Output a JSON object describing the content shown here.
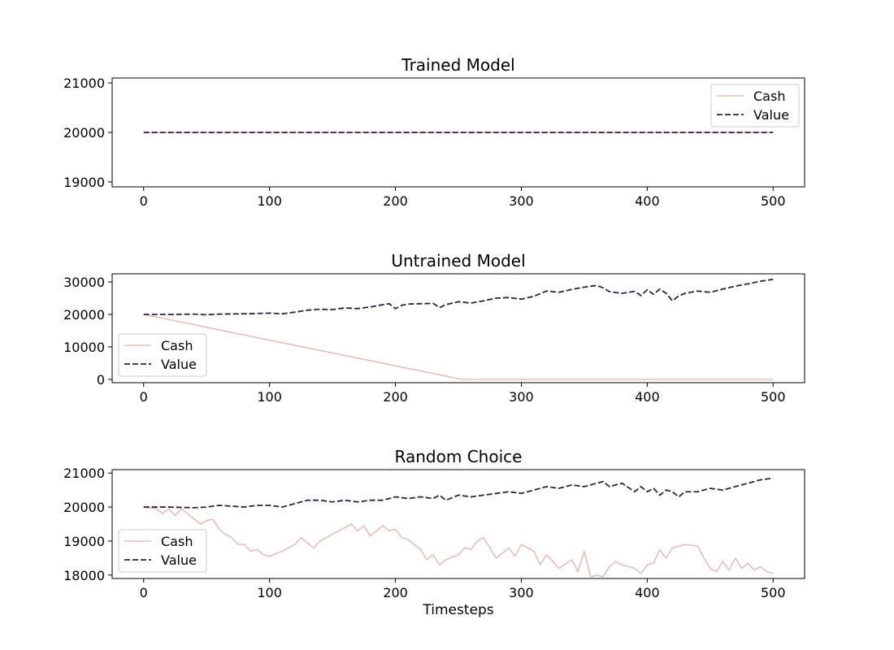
{
  "colors": {
    "cash": "#e5bfba",
    "value": "#2d2343",
    "axis": "#000000"
  },
  "chart_data": [
    {
      "type": "line",
      "title": "Trained Model",
      "xlabel": "",
      "ylabel": "",
      "xlim": [
        -25,
        525
      ],
      "ylim": [
        18900,
        21100
      ],
      "xticks": [
        0,
        100,
        200,
        300,
        400,
        500
      ],
      "yticks": [
        19000,
        20000,
        21000
      ],
      "legend": "top-right",
      "grid": false,
      "series": [
        {
          "name": "Cash",
          "style": "solid",
          "x": [
            0,
            500
          ],
          "y": [
            20000,
            20000
          ]
        },
        {
          "name": "Value",
          "style": "dashed",
          "x": [
            0,
            500
          ],
          "y": [
            20000,
            20000
          ]
        }
      ]
    },
    {
      "type": "line",
      "title": "Untrained Model",
      "xlabel": "",
      "ylabel": "",
      "xlim": [
        -25,
        525
      ],
      "ylim": [
        -1000,
        32500
      ],
      "xticks": [
        0,
        100,
        200,
        300,
        400,
        500
      ],
      "yticks": [
        0,
        10000,
        20000,
        30000
      ],
      "legend": "lower-left",
      "grid": false,
      "series": [
        {
          "name": "Cash",
          "style": "solid",
          "x": [
            0,
            253,
            500
          ],
          "y": [
            20000,
            0,
            0
          ]
        },
        {
          "name": "Value",
          "style": "dashed",
          "x": [
            0,
            20,
            40,
            50,
            60,
            80,
            100,
            110,
            120,
            130,
            140,
            150,
            160,
            170,
            180,
            190,
            195,
            200,
            205,
            210,
            220,
            230,
            235,
            240,
            250,
            260,
            270,
            280,
            290,
            300,
            310,
            320,
            330,
            340,
            350,
            360,
            365,
            370,
            380,
            390,
            395,
            400,
            405,
            410,
            415,
            420,
            425,
            430,
            440,
            450,
            460,
            470,
            480,
            490,
            500
          ],
          "y": [
            20000,
            20000,
            20100,
            19900,
            20100,
            20200,
            20400,
            20200,
            20700,
            21300,
            21600,
            21500,
            22000,
            21800,
            22300,
            23000,
            23300,
            21800,
            22800,
            23200,
            23300,
            23400,
            22100,
            23000,
            23900,
            23500,
            24200,
            25000,
            25200,
            24700,
            25600,
            27200,
            26800,
            27700,
            28400,
            28900,
            28200,
            27000,
            26500,
            27100,
            25800,
            27600,
            26200,
            27800,
            26500,
            24200,
            25700,
            26500,
            27200,
            26800,
            27800,
            28700,
            29400,
            30200,
            30800
          ]
        }
      ]
    },
    {
      "type": "line",
      "title": "Random Choice",
      "xlabel": "Timesteps",
      "ylabel": "",
      "xlim": [
        -25,
        525
      ],
      "ylim": [
        17900,
        21100
      ],
      "xticks": [
        0,
        100,
        200,
        300,
        400,
        500
      ],
      "yticks": [
        18000,
        19000,
        20000,
        21000
      ],
      "legend": "lower-left",
      "grid": false,
      "series": [
        {
          "name": "Cash",
          "style": "solid",
          "x": [
            0,
            10,
            15,
            20,
            25,
            30,
            35,
            40,
            45,
            50,
            55,
            60,
            65,
            70,
            75,
            80,
            85,
            90,
            95,
            100,
            110,
            120,
            125,
            130,
            135,
            140,
            150,
            160,
            165,
            170,
            175,
            180,
            185,
            190,
            195,
            200,
            205,
            210,
            215,
            220,
            225,
            230,
            235,
            240,
            250,
            255,
            260,
            265,
            270,
            275,
            280,
            290,
            295,
            300,
            310,
            315,
            320,
            330,
            340,
            345,
            350,
            355,
            360,
            365,
            370,
            375,
            380,
            390,
            395,
            400,
            405,
            410,
            415,
            420,
            430,
            440,
            445,
            450,
            455,
            460,
            465,
            470,
            475,
            480,
            485,
            490,
            495,
            500
          ],
          "y": [
            20000,
            19950,
            19800,
            19950,
            19750,
            19950,
            19800,
            19650,
            19500,
            19600,
            19650,
            19350,
            19200,
            19100,
            18900,
            18900,
            18700,
            18750,
            18600,
            18550,
            18700,
            18900,
            19100,
            18950,
            18800,
            19000,
            19200,
            19400,
            19500,
            19300,
            19450,
            19150,
            19300,
            19450,
            19300,
            19350,
            19100,
            19050,
            18900,
            18750,
            18450,
            18600,
            18300,
            18450,
            18600,
            18800,
            18750,
            19000,
            19100,
            18800,
            18500,
            18800,
            18550,
            18900,
            18700,
            18300,
            18600,
            18200,
            18450,
            18100,
            18700,
            17950,
            18000,
            17950,
            18250,
            18400,
            18300,
            18200,
            18050,
            18300,
            18350,
            18750,
            18500,
            18800,
            18900,
            18850,
            18500,
            18200,
            18100,
            18400,
            18150,
            18500,
            18200,
            18350,
            18150,
            18250,
            18100,
            18050
          ]
        },
        {
          "name": "Value",
          "style": "dashed",
          "x": [
            0,
            20,
            40,
            50,
            60,
            80,
            90,
            100,
            110,
            120,
            130,
            140,
            150,
            160,
            170,
            180,
            190,
            200,
            210,
            220,
            230,
            235,
            240,
            250,
            260,
            270,
            280,
            290,
            300,
            310,
            320,
            330,
            340,
            350,
            360,
            365,
            370,
            380,
            390,
            395,
            400,
            405,
            410,
            415,
            420,
            425,
            430,
            440,
            450,
            460,
            470,
            480,
            490,
            500
          ],
          "y": [
            20000,
            20000,
            19980,
            20000,
            20050,
            20000,
            20050,
            20050,
            20000,
            20100,
            20200,
            20200,
            20150,
            20200,
            20150,
            20200,
            20200,
            20300,
            20250,
            20300,
            20250,
            20350,
            20200,
            20350,
            20300,
            20350,
            20400,
            20450,
            20400,
            20500,
            20600,
            20550,
            20650,
            20600,
            20700,
            20750,
            20600,
            20700,
            20450,
            20600,
            20450,
            20550,
            20350,
            20500,
            20450,
            20300,
            20450,
            20450,
            20550,
            20500,
            20600,
            20700,
            20800,
            20850
          ]
        }
      ]
    }
  ]
}
